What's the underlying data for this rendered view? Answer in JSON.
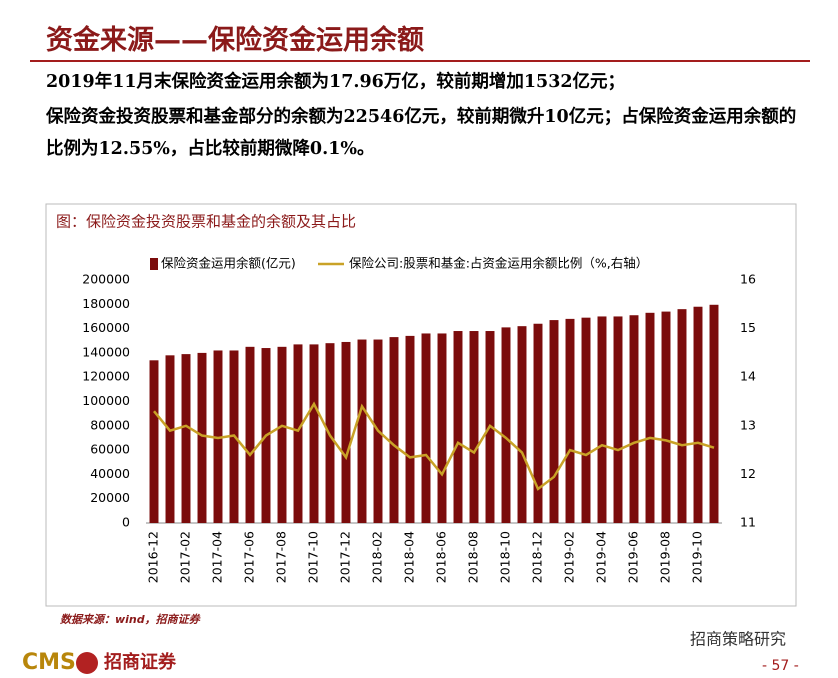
{
  "header": {
    "title": "资金来源——保险资金运用余额"
  },
  "paragraphs": [
    "2019年11月末保险资金运用余额为17.96万亿，较前期增加1532亿元；",
    "保险资金投资股票和基金部分的余额为22546亿元，较前期微升10亿元；占保险资金运用余额的比例为12.55%，占比较前期微降0.1%。"
  ],
  "chart_data": {
    "type": "bar-line",
    "title": "图：保险资金投资股票和基金的余额及其占比",
    "categories": [
      "2016-12",
      null,
      "2017-02",
      null,
      "2017-04",
      null,
      "2017-06",
      null,
      "2017-08",
      null,
      "2017-10",
      null,
      "2017-12",
      null,
      "2018-02",
      null,
      "2018-04",
      null,
      "2018-06",
      null,
      "2018-08",
      null,
      "2018-10",
      null,
      "2018-12",
      null,
      "2019-02",
      null,
      "2019-04",
      null,
      "2019-06",
      null,
      "2019-08",
      null,
      "2019-10",
      null
    ],
    "series": [
      {
        "name": "保险资金运用余额(亿元)",
        "color": "#7b0c0c",
        "type": "bar",
        "values": [
          133900,
          138000,
          139000,
          140000,
          142000,
          142000,
          145000,
          144000,
          145000,
          147000,
          147000,
          148000,
          149000,
          151000,
          151000,
          153000,
          154000,
          156000,
          156000,
          158000,
          158000,
          158000,
          161000,
          162000,
          164000,
          167000,
          168000,
          169000,
          170000,
          170000,
          171000,
          173000,
          174000,
          176000,
          178000,
          179600
        ]
      },
      {
        "name": "保险公司:股票和基金:占资金运用余额比例（%,右轴）",
        "color": "#c9a227",
        "type": "line",
        "axis": "y2",
        "values": [
          13.3,
          12.9,
          13.0,
          12.8,
          12.75,
          12.8,
          12.4,
          12.8,
          13.0,
          12.9,
          13.45,
          12.8,
          12.35,
          13.4,
          12.9,
          12.6,
          12.35,
          12.4,
          12.0,
          12.65,
          12.45,
          13.0,
          12.75,
          12.45,
          11.7,
          11.95,
          12.5,
          12.4,
          12.6,
          12.5,
          12.65,
          12.75,
          12.7,
          12.6,
          12.65,
          12.55
        ]
      }
    ],
    "ylim": [
      0,
      200000
    ],
    "yticks": [
      0,
      20000,
      40000,
      60000,
      80000,
      100000,
      120000,
      140000,
      160000,
      180000,
      200000
    ],
    "y2lim": [
      11,
      16
    ],
    "y2ticks": [
      11,
      12,
      13,
      14,
      15,
      16
    ],
    "source": "数据来源：wind，招商证券"
  },
  "footer": {
    "logo_text": "CMS",
    "logo_name": "招商证券",
    "watermark": "招商策略研究",
    "page": "- 57 -"
  }
}
